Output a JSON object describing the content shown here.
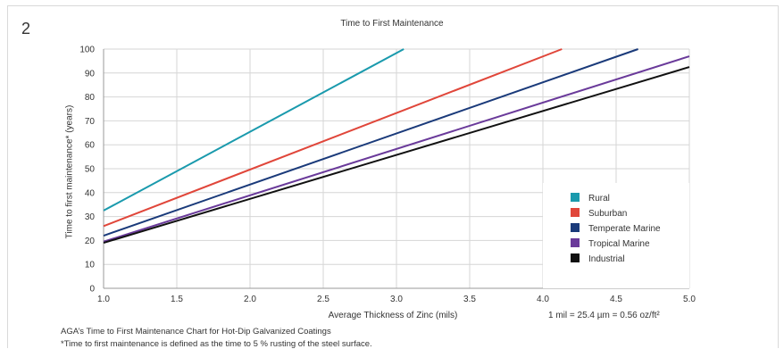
{
  "figure_number": "2",
  "caption_line1": "AGA’s Time to First Maintenance Chart for Hot-Dip Galvanized Coatings",
  "caption_line2": "*Time to first maintenance is defined as the time to 5 % rusting of the steel surface.",
  "units_note": "1 mil = 25.4 µm = 0.56 oz/ft²",
  "chart_data": {
    "type": "line",
    "title": "Time to First Maintenance",
    "xlabel": "Average Thickness of Zinc (mils)",
    "ylabel": "Time to first maintenance* (years)",
    "xlim": [
      1.0,
      5.0
    ],
    "ylim": [
      0,
      100
    ],
    "x_ticks": [
      "1.0",
      "1.5",
      "2.0",
      "2.5",
      "3.0",
      "3.5",
      "4.0",
      "4.5",
      "5.0"
    ],
    "y_ticks": [
      "0",
      "10",
      "20",
      "30",
      "40",
      "50",
      "60",
      "70",
      "80",
      "90",
      "100"
    ],
    "grid": true,
    "legend_position": "right",
    "series": [
      {
        "name": "Rural",
        "color": "#1a9aad",
        "x": [
          1.0,
          3.05
        ],
        "y": [
          32.5,
          100
        ]
      },
      {
        "name": "Suburban",
        "color": "#e0463a",
        "x": [
          1.0,
          4.13
        ],
        "y": [
          26,
          100
        ]
      },
      {
        "name": "Temperate Marine",
        "color": "#1a3a7a",
        "x": [
          1.0,
          4.65
        ],
        "y": [
          22,
          100
        ]
      },
      {
        "name": "Tropical Marine",
        "color": "#6a3a9a",
        "x": [
          1.0,
          5.0
        ],
        "y": [
          19.5,
          97
        ]
      },
      {
        "name": "Industrial",
        "color": "#111111",
        "x": [
          1.0,
          5.0
        ],
        "y": [
          19,
          92.5
        ]
      }
    ]
  }
}
